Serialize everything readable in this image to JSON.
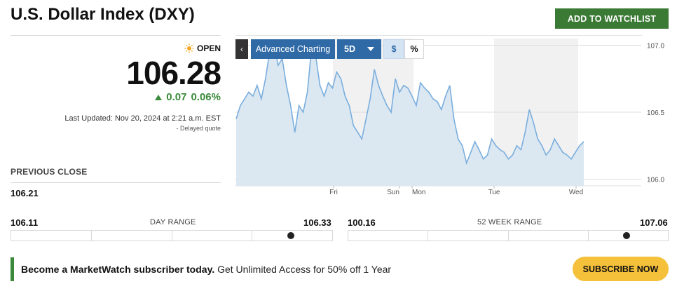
{
  "header": {
    "title": "U.S. Dollar Index (DXY)",
    "watchlist_label": "ADD TO WATCHLIST"
  },
  "quote": {
    "status": "OPEN",
    "price": "106.28",
    "change": "0.07",
    "change_pct": "0.06%",
    "last_updated": "Last Updated: Nov 20, 2024 at 2:21 a.m. EST",
    "delayed": "Delayed quote",
    "prev_close_label": "PREVIOUS CLOSE",
    "prev_close": "106.21",
    "up_color": "#3b8a3b"
  },
  "toolbar": {
    "back_icon": "chevron-left-icon",
    "advanced_label": "Advanced Charting",
    "period": "5D",
    "dollar_label": "$",
    "percent_label": "%"
  },
  "chart_data": {
    "type": "area",
    "x_ticks": [
      "Fri",
      "Sun",
      "Mon",
      "Tue",
      "Wed"
    ],
    "y_ticks": [
      "107.0",
      "106.5",
      "106.0"
    ],
    "ylim": [
      105.95,
      107.05
    ],
    "line_color": "#7aaede",
    "fill_color": "#dbe7f1",
    "values": [
      106.45,
      106.55,
      106.6,
      106.65,
      106.62,
      106.7,
      106.6,
      106.75,
      106.95,
      107.03,
      106.85,
      106.9,
      106.7,
      106.55,
      106.35,
      106.55,
      106.5,
      106.65,
      106.98,
      106.92,
      106.7,
      106.62,
      106.72,
      106.68,
      106.8,
      106.75,
      106.62,
      106.55,
      106.4,
      106.35,
      106.3,
      106.45,
      106.6,
      106.82,
      106.7,
      106.62,
      106.55,
      106.5,
      106.75,
      106.65,
      106.7,
      106.68,
      106.62,
      106.55,
      106.72,
      106.68,
      106.65,
      106.6,
      106.58,
      106.52,
      106.62,
      106.7,
      106.45,
      106.3,
      106.25,
      106.12,
      106.2,
      106.28,
      106.22,
      106.15,
      106.18,
      106.3,
      106.25,
      106.22,
      106.2,
      106.15,
      106.18,
      106.25,
      106.22,
      106.35,
      106.52,
      106.42,
      106.3,
      106.25,
      106.18,
      106.22,
      106.3,
      106.25,
      106.2,
      106.18,
      106.15,
      106.2,
      106.25,
      106.28
    ]
  },
  "ranges": {
    "day_label": "DAY RANGE",
    "day_low": "106.11",
    "day_high": "106.33",
    "day_position": 0.87,
    "year_label": "52 WEEK RANGE",
    "year_low": "100.16",
    "year_high": "107.06",
    "year_position": 0.87
  },
  "promo": {
    "bold_text": "Become a MarketWatch subscriber today.",
    "text": " Get Unlimited Access for 50% off 1 Year",
    "button_label": "SUBSCRIBE NOW"
  }
}
